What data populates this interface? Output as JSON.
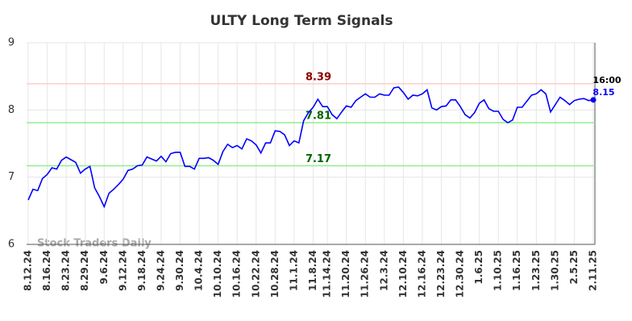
{
  "chart_data": {
    "type": "line",
    "title": "ULTY Long Term Signals",
    "categories": [
      "8.12.24",
      null,
      null,
      null,
      "8.16.24",
      null,
      null,
      null,
      "8.23.24",
      null,
      null,
      null,
      "8.29.24",
      null,
      null,
      null,
      "9.6.24",
      null,
      null,
      null,
      "9.12.24",
      null,
      null,
      null,
      "9.18.24",
      null,
      null,
      null,
      "9.24.24",
      null,
      null,
      null,
      "9.30.24",
      null,
      null,
      null,
      "10.4.24",
      null,
      null,
      null,
      "10.10.24",
      null,
      null,
      null,
      "10.16.24",
      null,
      null,
      null,
      "10.22.24",
      null,
      null,
      null,
      "10.28.24",
      null,
      null,
      null,
      "11.1.24",
      null,
      null,
      null,
      "11.8.24",
      null,
      null,
      "11.14.24",
      null,
      null,
      null,
      "11.20.24",
      null,
      null,
      null,
      "11.26.24",
      null,
      null,
      null,
      "12.3.24",
      null,
      null,
      null,
      "12.10.24",
      null,
      null,
      null,
      "12.16.24",
      null,
      null,
      null,
      "12.23.24",
      null,
      null,
      null,
      "12.30.24",
      null,
      null,
      null,
      "1.6.25",
      null,
      null,
      null,
      "1.10.25",
      null,
      null,
      null,
      "1.16.25",
      null,
      null,
      null,
      "1.23.25",
      null,
      null,
      null,
      "1.30.25",
      null,
      null,
      null,
      "2.5.25",
      null,
      null,
      null,
      "2.11.25"
    ],
    "series": [
      {
        "color": "#0000ff",
        "values": [
          6.66,
          6.82,
          6.8,
          6.98,
          7.04,
          7.14,
          7.12,
          7.25,
          7.3,
          7.26,
          7.22,
          7.06,
          7.12,
          7.16,
          6.84,
          6.71,
          6.56,
          6.76,
          6.82,
          6.89,
          6.97,
          7.1,
          7.12,
          7.17,
          7.18,
          7.3,
          7.27,
          7.24,
          7.31,
          7.23,
          7.35,
          7.37,
          7.37,
          7.16,
          7.16,
          7.12,
          7.28,
          7.28,
          7.29,
          7.25,
          7.19,
          7.38,
          7.49,
          7.44,
          7.47,
          7.42,
          7.57,
          7.54,
          7.48,
          7.36,
          7.51,
          7.51,
          7.69,
          7.68,
          7.63,
          7.47,
          7.54,
          7.51,
          7.84,
          7.96,
          8.04,
          8.16,
          8.05,
          8.05,
          7.93,
          7.87,
          7.97,
          8.06,
          8.04,
          8.14,
          8.19,
          8.24,
          8.19,
          8.19,
          8.24,
          8.22,
          8.22,
          8.33,
          8.34,
          8.26,
          8.16,
          8.22,
          8.21,
          8.24,
          8.3,
          8.03,
          8.0,
          8.05,
          8.06,
          8.15,
          8.15,
          8.05,
          7.93,
          7.88,
          7.96,
          8.1,
          8.15,
          8.02,
          7.98,
          7.98,
          7.86,
          7.81,
          7.85,
          8.04,
          8.04,
          8.13,
          8.22,
          8.24,
          8.3,
          8.24,
          7.97,
          8.08,
          8.19,
          8.14,
          8.08,
          8.14,
          8.16,
          8.17,
          8.14,
          8.15
        ]
      }
    ],
    "ylim": [
      6,
      9
    ],
    "yticks": [
      6,
      7,
      8,
      9
    ],
    "grid": true,
    "reference_lines": [
      {
        "value": 8.39,
        "color": "#ffcccc",
        "label_color": "#8b0000"
      },
      {
        "value": 7.81,
        "color": "#90ee90",
        "label_color": "#006400"
      },
      {
        "value": 7.17,
        "color": "#90ee90",
        "label_color": "#006400"
      }
    ],
    "last_time": "16:00",
    "watermark": "Stock Traders Daily"
  }
}
